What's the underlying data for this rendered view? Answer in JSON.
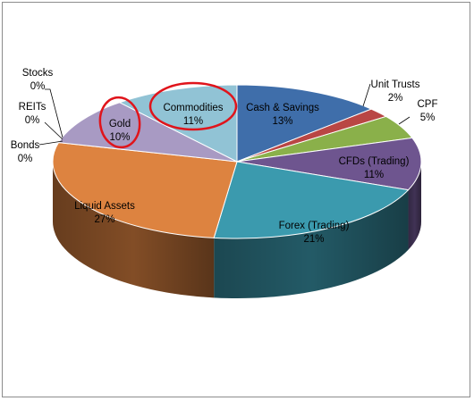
{
  "chart_data": {
    "type": "pie",
    "style": "3d-exploded-none",
    "title": "",
    "slices": [
      {
        "label": "Cash & Savings",
        "value": 13,
        "display": "13%",
        "color": "#3f6eaa"
      },
      {
        "label": "Unit Trusts",
        "value": 2,
        "display": "2%",
        "color": "#b94644"
      },
      {
        "label": "CPF",
        "value": 5,
        "display": "5%",
        "color": "#8ab04a"
      },
      {
        "label": "CFDs (Trading)",
        "value": 11,
        "display": "11%",
        "color": "#6e558f"
      },
      {
        "label": "Forex (Trading)",
        "value": 21,
        "display": "21%",
        "color": "#3b9aae"
      },
      {
        "label": "Liquid Assets",
        "value": 27,
        "display": "27%",
        "color": "#dd8340"
      },
      {
        "label": "Bonds",
        "value": 0,
        "display": "0%",
        "color": "#5b7fc0"
      },
      {
        "label": "REITs",
        "value": 0,
        "display": "0%",
        "color": "#c0504d"
      },
      {
        "label": "Stocks",
        "value": 0,
        "display": "0%",
        "color": "#9bbb59"
      },
      {
        "label": "Gold",
        "value": 10,
        "display": "10%",
        "color": "#a89ac3"
      },
      {
        "label": "Commodities",
        "value": 11,
        "display": "11%",
        "color": "#91c3d5"
      }
    ],
    "highlighted": [
      "Gold",
      "Commodities"
    ],
    "highlight_color": "#e0141b",
    "legend": "none"
  }
}
